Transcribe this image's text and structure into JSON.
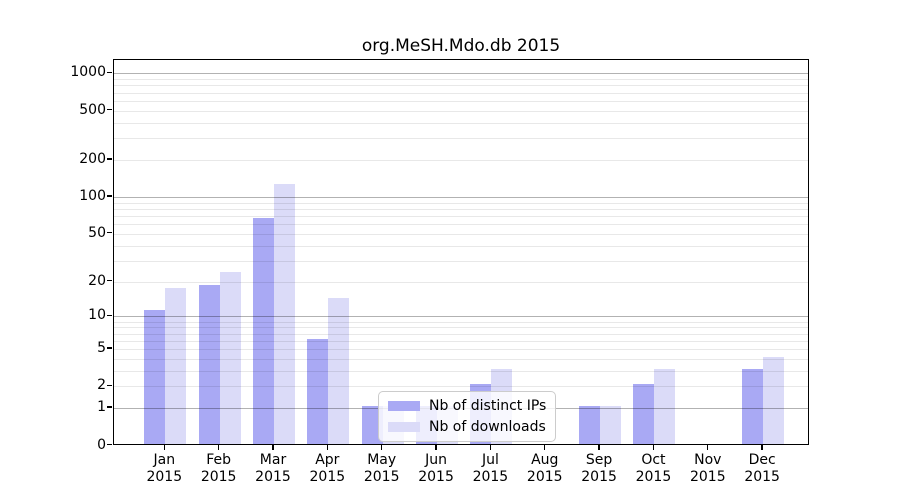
{
  "chart_data": {
    "type": "bar",
    "title": "org.MeSH.Mdo.db 2015",
    "categories": [
      "Jan 2015",
      "Feb 2015",
      "Mar 2015",
      "Apr 2015",
      "May 2015",
      "Jun 2015",
      "Jul 2015",
      "Aug 2015",
      "Sep 2015",
      "Oct 2015",
      "Nov 2015",
      "Dec 2015"
    ],
    "series": [
      {
        "name": "Nb of distinct IPs",
        "color": "#a9a9f4",
        "values": [
          11,
          18,
          65,
          6,
          1,
          1,
          2,
          0,
          1,
          2,
          0,
          3
        ]
      },
      {
        "name": "Nb of downloads",
        "color": "#dbdbf8",
        "values": [
          17,
          23,
          123,
          14,
          1,
          1,
          3,
          0,
          1,
          3,
          0,
          4
        ]
      }
    ],
    "y_scale": "log10(1+x)",
    "y_ticks": [
      0,
      1,
      2,
      5,
      10,
      20,
      50,
      100,
      200,
      500,
      1000
    ],
    "ylim": [
      0,
      1250
    ],
    "grid": true,
    "grid_major_at": [
      1,
      10,
      100,
      1000
    ],
    "legend_position": "lower center",
    "xlabel": "",
    "ylabel": ""
  },
  "colors": {
    "background": "#ffffff",
    "axis": "#000000",
    "grid_major": "#b3b3b3",
    "grid_minor": "#e8e8e8"
  }
}
